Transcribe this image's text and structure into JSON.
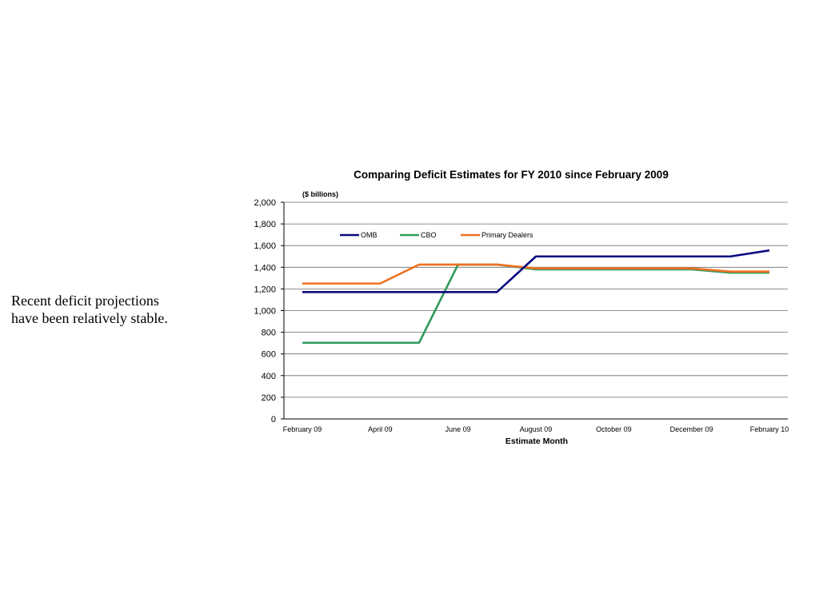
{
  "slide": {
    "side_note": "Recent deficit projections have been relatively stable."
  },
  "chart_data": {
    "type": "line",
    "title": "Comparing Deficit Estimates for FY 2010 since February 2009",
    "unit_label": "($ billions)",
    "xlabel": "Estimate Month",
    "ylabel": "",
    "ylim": [
      0,
      2000
    ],
    "y_ticks": [
      0,
      200,
      400,
      600,
      800,
      1000,
      1200,
      1400,
      1600,
      1800,
      2000
    ],
    "y_tick_labels": [
      "0",
      "200",
      "400",
      "600",
      "800",
      "1,000",
      "1,200",
      "1,400",
      "1,600",
      "1,800",
      "2,000"
    ],
    "x": [
      "February 09",
      "March 09",
      "April 09",
      "May 09",
      "June 09",
      "July 09",
      "August 09",
      "September 09",
      "October 09",
      "November 09",
      "December 09",
      "January 10",
      "February 10"
    ],
    "x_tick_labels": [
      "February 09",
      "April 09",
      "June 09",
      "August 09",
      "October 09",
      "December 09",
      "February 10"
    ],
    "grid": "horizontal",
    "legend_position": "top-left",
    "series": [
      {
        "name": "OMB",
        "color": "#0a0a80",
        "values": [
          1171,
          1171,
          1171,
          1171,
          1171,
          1171,
          1500,
          1500,
          1500,
          1500,
          1500,
          1500,
          1556
        ]
      },
      {
        "name": "CBO",
        "color": "#2e9a5c",
        "values": [
          703,
          703,
          703,
          703,
          1425,
          1425,
          1380,
          1380,
          1380,
          1380,
          1380,
          1350,
          1350
        ]
      },
      {
        "name": "Primary Dealers",
        "color": "#f07020",
        "values": [
          1250,
          1250,
          1250,
          1425,
          1425,
          1425,
          1390,
          1390,
          1390,
          1390,
          1390,
          1360,
          1360
        ]
      }
    ]
  }
}
